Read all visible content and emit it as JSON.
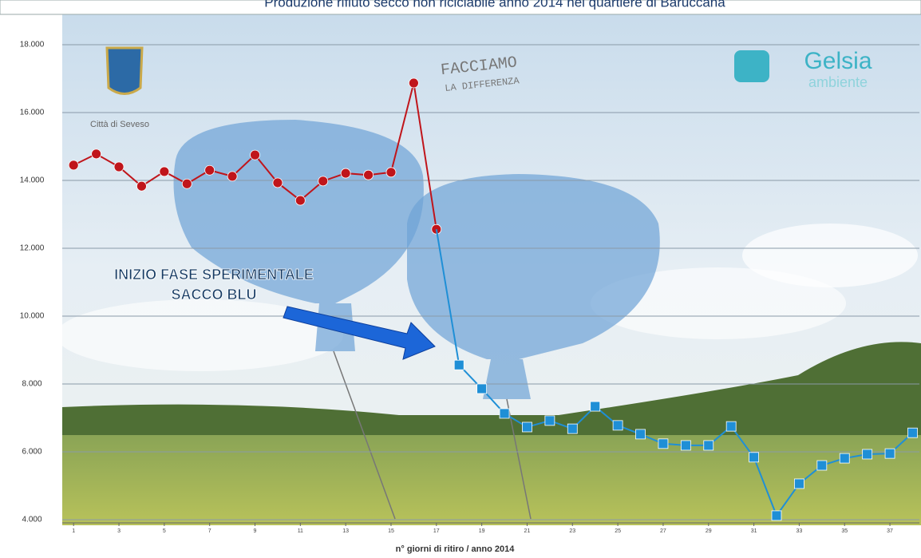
{
  "chart_data": {
    "type": "line",
    "title": "Produzione rifiuto secco non riciclabile anno 2014 nel quartiere di Baruccana",
    "xlabel": "n° giorni di ritiro / anno 2014",
    "x": [
      1,
      2,
      3,
      4,
      5,
      6,
      7,
      8,
      9,
      10,
      11,
      12,
      13,
      14,
      15,
      16,
      17,
      18,
      19,
      20,
      21,
      22,
      23,
      24,
      25,
      26,
      27,
      28,
      29,
      30,
      31,
      32,
      33,
      34,
      35,
      36,
      37,
      38
    ],
    "xlim": [
      0.5,
      38.3
    ],
    "xticks": [
      1,
      3,
      5,
      7,
      9,
      11,
      13,
      15,
      17,
      19,
      21,
      23,
      25,
      27,
      29,
      31,
      33,
      35,
      37
    ],
    "ylim": [
      4000,
      18000
    ],
    "yticks": [
      {
        "value": 4000,
        "label": "4.000"
      },
      {
        "value": 6000,
        "label": "6.000"
      },
      {
        "value": 8000,
        "label": "8.000"
      },
      {
        "value": 10000,
        "label": "10.000"
      },
      {
        "value": 12000,
        "label": "12.000"
      },
      {
        "value": 14000,
        "label": "14.000"
      },
      {
        "value": 16000,
        "label": "16.000"
      },
      {
        "value": 18000,
        "label": "18.000"
      }
    ],
    "grid": true,
    "series": [
      {
        "color": "#c0151b",
        "marker": "circle",
        "values": [
          14450,
          14780,
          14400,
          13830,
          14260,
          13900,
          14300,
          14120,
          14750,
          13930,
          13410,
          13980,
          14210,
          14160,
          14240,
          16870,
          12560,
          null,
          null,
          null,
          null,
          null,
          null,
          null,
          null,
          null,
          null,
          null,
          null,
          null,
          null,
          null,
          null,
          null,
          null,
          null,
          null,
          null
        ]
      },
      {
        "color": "#1f8fd6",
        "marker": "square",
        "values": [
          null,
          null,
          null,
          null,
          null,
          null,
          null,
          null,
          null,
          null,
          null,
          null,
          null,
          null,
          null,
          null,
          null,
          8560,
          7860,
          7130,
          6730,
          6920,
          6680,
          7340,
          6780,
          6520,
          6240,
          6190,
          6190,
          6750,
          5840,
          4120,
          5060,
          5600,
          5810,
          5930,
          5950,
          6560
        ]
      }
    ],
    "annotations": [
      "INIZIO FASE SPERIMENTALE",
      "SACCO BLU"
    ],
    "logos": {
      "city": "Città di Seveso",
      "slogan_1": "FACCIAMO",
      "slogan_2": "LA DIFFERENZA",
      "brand": "Gelsia",
      "brand_sub": "ambiente"
    }
  }
}
